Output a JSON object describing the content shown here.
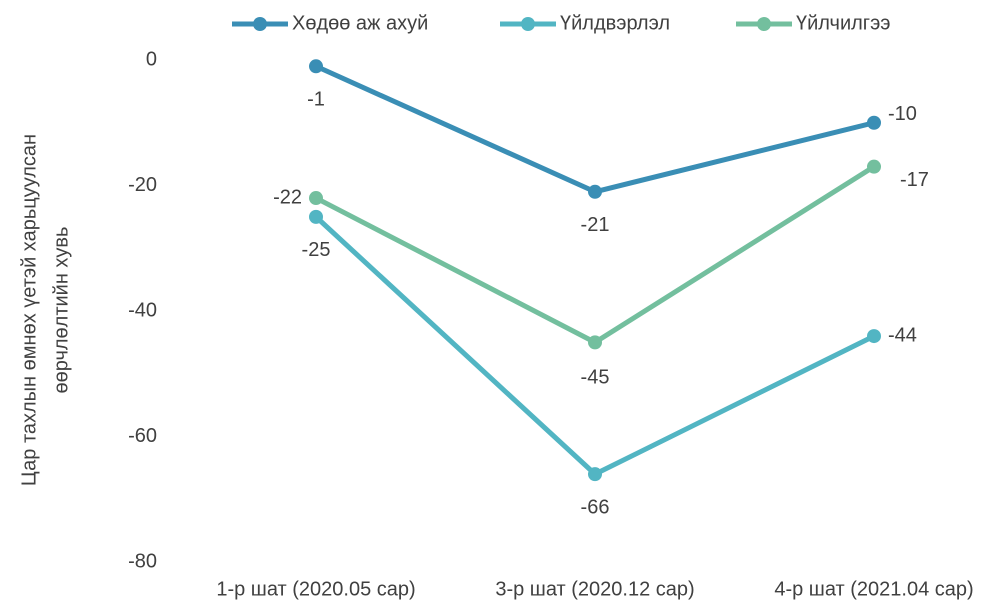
{
  "chart_data": {
    "type": "line",
    "y_label": [
      "Цар тахлын өмнөх үетэй харьцуулсан",
      "өөрчлөлтийн хувь"
    ],
    "categories": [
      "1-р шат (2020.05 сар)",
      "3-р шат (2020.12 сар)",
      "4-р шат (2021.04 сар)"
    ],
    "series": [
      {
        "name": "Хөдөө аж ахуй",
        "color": "#3a8eb5",
        "values": [
          -1,
          -21,
          -10
        ]
      },
      {
        "name": "Үйлдвэрлэл",
        "color": "#52b5c3",
        "values": [
          -25,
          -66,
          -44
        ]
      },
      {
        "name": "Үйлчилгээ",
        "color": "#73bf9e",
        "values": [
          -22,
          -45,
          -17
        ]
      }
    ],
    "ylim": [
      -80,
      0
    ],
    "yticks": [
      0,
      -20,
      -40,
      -60,
      -80
    ],
    "grid": false,
    "legend": "top"
  }
}
